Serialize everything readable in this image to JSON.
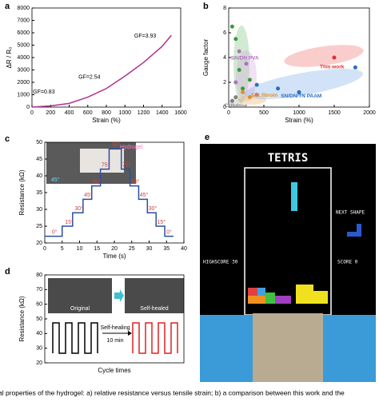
{
  "panel_labels": [
    "a",
    "b",
    "c",
    "d",
    "e"
  ],
  "chart_data": [
    {
      "type": "line",
      "xlabel": "Strain (%)",
      "ylabel": "ΔR / R₀",
      "x": [
        0,
        200,
        400,
        600,
        800,
        1000,
        1200,
        1400,
        1500
      ],
      "series": [
        {
          "color": "#b03090",
          "values": [
            0,
            100,
            300,
            800,
            1500,
            2500,
            3600,
            4900,
            5800
          ]
        }
      ],
      "xlim": [
        0,
        1600
      ],
      "xticks": [
        0,
        200,
        400,
        600,
        800,
        1000,
        1200,
        1400,
        1600
      ],
      "ylim": [
        0,
        8000
      ],
      "yticks": [
        0,
        1000,
        2000,
        3000,
        4000,
        5000,
        6000,
        7000,
        8000
      ],
      "annotations": [
        {
          "text": "GF=0.83",
          "x": 10,
          "y": 900,
          "color": "#000000"
        },
        {
          "text": "GF=2.54",
          "x": 500,
          "y": 2100,
          "color": "#000000"
        },
        {
          "text": "GF=3.93",
          "x": 1100,
          "y": 5400,
          "color": "#000000"
        }
      ]
    },
    {
      "type": "scatter",
      "xlabel": "Strain (%)",
      "ylabel": "Gauge factor",
      "series": [
        {
          "name": "SN/DN AAC",
          "color": "#3a9a3a",
          "x": [
            50,
            100,
            150,
            200,
            300
          ],
          "values": [
            6.5,
            5.5,
            3,
            1.5,
            2.2
          ]
        },
        {
          "name": "SN/DN PVA",
          "color": "#b070c0",
          "x": [
            100,
            150,
            250,
            400
          ],
          "values": [
            2,
            4.5,
            3.5,
            1
          ]
        },
        {
          "name": "This work",
          "color": "#e03030",
          "x": [
            1500
          ],
          "values": [
            4
          ]
        },
        {
          "name": "Silk fibroin",
          "color": "#e0902a",
          "x": [
            200,
            300
          ],
          "values": [
            1.2,
            0.8
          ]
        },
        {
          "name": "Cellulose",
          "color": "#808080",
          "x": [
            50,
            100
          ],
          "values": [
            0.5,
            0.8
          ]
        },
        {
          "name": "SN/DN/TN PAAM",
          "color": "#2a6fc0",
          "x": [
            400,
            700,
            1000,
            1800
          ],
          "values": [
            1.8,
            1.5,
            1.2,
            3.2
          ]
        }
      ],
      "xlim": [
        0,
        2000
      ],
      "xticks": [
        0,
        500,
        1000,
        1500,
        2000
      ],
      "ylim": [
        0,
        8
      ],
      "yticks": [
        0,
        2,
        4,
        6,
        8
      ]
    },
    {
      "type": "line",
      "xlabel": "Time (s)",
      "ylabel": "Resistance (kΩ)",
      "x": [
        0,
        5,
        5,
        8,
        8,
        11,
        11,
        13.5,
        13.5,
        16,
        16,
        18.5,
        18.5,
        22,
        22,
        24.5,
        24.5,
        27,
        27,
        29.5,
        29.5,
        32,
        32,
        34.5,
        34.5,
        37
      ],
      "series": [
        {
          "color": "#2a4fa0",
          "values": [
            22,
            22,
            25,
            25,
            29,
            29,
            33,
            33,
            37,
            37,
            42,
            42,
            48,
            48,
            42,
            42,
            37,
            37,
            33,
            33,
            29,
            29,
            25,
            25,
            22,
            22
          ]
        }
      ],
      "xlim": [
        0,
        40
      ],
      "xticks": [
        0,
        5,
        10,
        15,
        20,
        25,
        30,
        35,
        40
      ],
      "ylim": [
        20,
        50
      ],
      "yticks": [
        20,
        25,
        30,
        35,
        40,
        45,
        50
      ],
      "annotations": [
        {
          "text": "0°",
          "x": 2,
          "y": 22,
          "color": "#d04040"
        },
        {
          "text": "15°",
          "x": 5.8,
          "y": 25,
          "color": "#d04040"
        },
        {
          "text": "30°",
          "x": 8.6,
          "y": 29,
          "color": "#d04040"
        },
        {
          "text": "45°",
          "x": 11.3,
          "y": 33,
          "color": "#d04040"
        },
        {
          "text": "60°",
          "x": 13.8,
          "y": 37,
          "color": "#d04040"
        },
        {
          "text": "75°",
          "x": 16.3,
          "y": 42,
          "color": "#d04040"
        },
        {
          "text": "90°",
          "x": 19.3,
          "y": 48,
          "color": "#d04040"
        },
        {
          "text": "75°",
          "x": 22.3,
          "y": 42,
          "color": "#d04040"
        },
        {
          "text": "60°",
          "x": 24.8,
          "y": 37,
          "color": "#d04040"
        },
        {
          "text": "45°",
          "x": 27.3,
          "y": 33,
          "color": "#d04040"
        },
        {
          "text": "30°",
          "x": 29.8,
          "y": 29,
          "color": "#d04040"
        },
        {
          "text": "15°",
          "x": 32.3,
          "y": 25,
          "color": "#d04040"
        },
        {
          "text": "0°",
          "x": 35,
          "y": 22,
          "color": "#d04040"
        }
      ]
    },
    {
      "type": "wave",
      "xlabel": "Cycle times",
      "ylabel": "Resistance (kΩ)",
      "ylim": [
        20,
        80
      ],
      "yticks": [
        20,
        30,
        40,
        50,
        60,
        70,
        80
      ]
    }
  ],
  "photo_c": {
    "hydrogel": "Hydrogel",
    "angle": "45°"
  },
  "photo_d": {
    "original": "Original",
    "healed": "Self-healed",
    "process": "Self-healing",
    "time": "10 min"
  },
  "tetris": {
    "title": "TETRIS",
    "next": "NEXT SHAPE",
    "highscore": "HIGHSCORE 30",
    "score": "SCORE 0"
  },
  "caption": "al properties of the hydrogel: a) relative resistance versus tensile strain; b) a comparison between this work and the"
}
